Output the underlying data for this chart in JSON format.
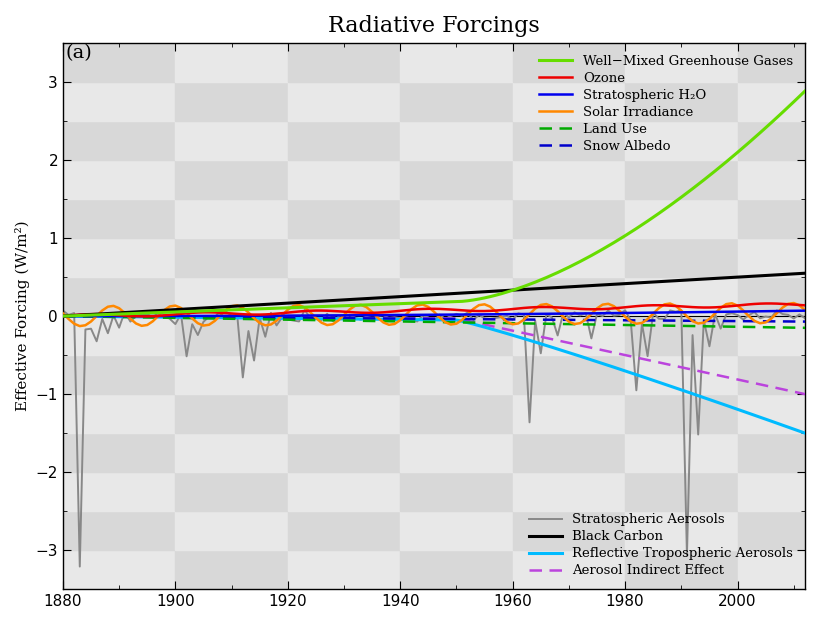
{
  "title": "Radiative Forcings",
  "panel_label": "(a)",
  "ylabel": "Effective Forcing (W/m²)",
  "xlim": [
    1880,
    2012
  ],
  "ylim": [
    -3.5,
    3.5
  ],
  "yticks": [
    -3,
    -2,
    -1,
    0,
    1,
    2,
    3
  ],
  "xticks": [
    1880,
    1900,
    1920,
    1940,
    1960,
    1980,
    2000
  ],
  "series": {
    "well_mixed_ghg": {
      "label": "Well−Mixed Greenhouse Gases",
      "color": "#66dd00",
      "linewidth": 2.2
    },
    "ozone": {
      "label": "Ozone",
      "color": "#ee0000",
      "linewidth": 1.8
    },
    "strat_h2o": {
      "label": "Stratospheric H₂O",
      "color": "#0000ee",
      "linewidth": 1.8
    },
    "solar": {
      "label": "Solar Irradiance",
      "color": "#ff8800",
      "linewidth": 1.8
    },
    "land_use": {
      "label": "Land Use",
      "color": "#00aa00",
      "linewidth": 1.8
    },
    "snow_albedo": {
      "label": "Snow Albedo",
      "color": "#0000cc",
      "linewidth": 1.8
    },
    "strat_aerosols": {
      "label": "Stratospheric Aerosols",
      "color": "#888888",
      "linewidth": 1.4
    },
    "black_carbon": {
      "label": "Black Carbon",
      "color": "#000000",
      "linewidth": 2.2
    },
    "reflect_trop_aerosols": {
      "label": "Reflective Tropospheric Aerosols",
      "color": "#00bbff",
      "linewidth": 2.2
    },
    "aerosol_indirect": {
      "label": "Aerosol Indirect Effect",
      "color": "#bb44dd",
      "linewidth": 1.8
    }
  }
}
